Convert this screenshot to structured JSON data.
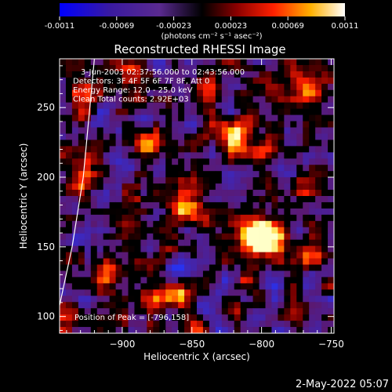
{
  "chart_data": {
    "type": "heatmap",
    "title": "Reconstructed RHESSI Image",
    "xlabel": "Heliocentric X (arcsec)",
    "ylabel": "Heliocentric Y (arcsec)",
    "xlim": [
      -945,
      -748
    ],
    "ylim": [
      88,
      285
    ],
    "x_ticks": [
      -900,
      -850,
      -800,
      -750
    ],
    "y_ticks": [
      100,
      150,
      200,
      250
    ],
    "colorbar": {
      "ticks": [
        "-0.0011",
        "-0.00069",
        "-0.00023",
        "0.00023",
        "0.00069",
        "0.0011"
      ],
      "units": "(photons cm⁻² s⁻¹ asec⁻²)",
      "range": [
        -0.0011,
        0.0011
      ]
    },
    "annotations": [
      "3-Jun-2003 02:37:56.000 to 02:43:56.000",
      "Detectors: 3F 4F 5F 6F 7F 8F, Att 0",
      "Energy Range: 12.0 - 25.0 keV",
      "Clean     Total counts: 2.92E+03"
    ],
    "peak_label": "Position of Peak = [-796,158]",
    "peak": [
      -796,
      158
    ],
    "sources": [
      {
        "x": -796,
        "y": 158,
        "amp": 1.0,
        "sigma": 10
      },
      {
        "x": -810,
        "y": 160,
        "amp": 0.75,
        "sigma": 8
      },
      {
        "x": -815,
        "y": 230,
        "amp": 0.6,
        "sigma": 10
      },
      {
        "x": -880,
        "y": 225,
        "amp": 0.55,
        "sigma": 8
      },
      {
        "x": -930,
        "y": 200,
        "amp": 0.65,
        "sigma": 9
      },
      {
        "x": -930,
        "y": 255,
        "amp": 0.55,
        "sigma": 8
      },
      {
        "x": -895,
        "y": 275,
        "amp": 0.5,
        "sigma": 7
      },
      {
        "x": -760,
        "y": 262,
        "amp": 0.55,
        "sigma": 7
      },
      {
        "x": -780,
        "y": 270,
        "amp": 0.5,
        "sigma": 7
      },
      {
        "x": -855,
        "y": 178,
        "amp": 0.5,
        "sigma": 8
      },
      {
        "x": -860,
        "y": 115,
        "amp": 0.55,
        "sigma": 7
      },
      {
        "x": -912,
        "y": 130,
        "amp": 0.5,
        "sigma": 8
      },
      {
        "x": -900,
        "y": 165,
        "amp": 0.45,
        "sigma": 8
      },
      {
        "x": -760,
        "y": 150,
        "amp": 0.45,
        "sigma": 8
      },
      {
        "x": -770,
        "y": 200,
        "amp": 0.45,
        "sigma": 8
      },
      {
        "x": -835,
        "y": 268,
        "amp": 0.45,
        "sigma": 7
      },
      {
        "x": -940,
        "y": 100,
        "amp": 0.5,
        "sigma": 7
      },
      {
        "x": -880,
        "y": 110,
        "amp": 0.4,
        "sigma": 7
      }
    ],
    "limb_line": {
      "x": [
        -945,
        -936,
        -928,
        -920
      ],
      "y": [
        108,
        150,
        200,
        285
      ]
    }
  },
  "timestamp": "2-May-2022 05:07"
}
